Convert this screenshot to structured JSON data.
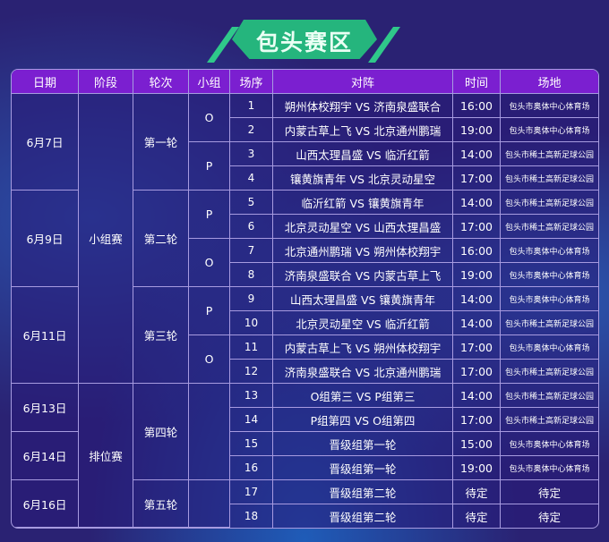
{
  "title": "包头赛区",
  "colors": {
    "header": "#7b1fd0",
    "title_badge": "#25b57d",
    "background": "#2a2273"
  },
  "headers": [
    "日期",
    "阶段",
    "轮次",
    "小组",
    "场序",
    "对阵",
    "时间",
    "场地"
  ],
  "dates": [
    {
      "label": "6月7日",
      "rows": 4
    },
    {
      "label": "6月9日",
      "rows": 4
    },
    {
      "label": "6月11日",
      "rows": 4
    },
    {
      "label": "6月13日",
      "rows": 2
    },
    {
      "label": "6月14日",
      "rows": 2
    },
    {
      "label": "6月16日",
      "rows": 2
    }
  ],
  "stages": [
    {
      "label": "小组赛",
      "rows": 12
    },
    {
      "label": "排位赛",
      "rows": 6
    }
  ],
  "rounds": [
    {
      "label": "第一轮",
      "rows": 4
    },
    {
      "label": "第二轮",
      "rows": 4
    },
    {
      "label": "第三轮",
      "rows": 4
    },
    {
      "label": "第四轮",
      "rows": 4
    },
    {
      "label": "第五轮",
      "rows": 2
    }
  ],
  "groups": [
    {
      "label": "O",
      "rows": 2
    },
    {
      "label": "P",
      "rows": 2
    },
    {
      "label": "P",
      "rows": 2
    },
    {
      "label": "O",
      "rows": 2
    },
    {
      "label": "P",
      "rows": 2
    },
    {
      "label": "O",
      "rows": 2
    },
    {
      "label": "",
      "rows": 4
    },
    {
      "label": "",
      "rows": 2
    }
  ],
  "matches": [
    {
      "no": "1",
      "match": "朔州体校翔宇 VS 济南泉盛联合",
      "time": "16:00",
      "venue": "包头市奥体中心体育场"
    },
    {
      "no": "2",
      "match": "内蒙古草上飞 VS 北京通州鹏瑞",
      "time": "19:00",
      "venue": "包头市奥体中心体育场"
    },
    {
      "no": "3",
      "match": "山西太理昌盛 VS 临沂红箭",
      "time": "14:00",
      "venue": "包头市稀土高新足球公园"
    },
    {
      "no": "4",
      "match": "镶黄旗青年 VS 北京灵动星空",
      "time": "17:00",
      "venue": "包头市稀土高新足球公园"
    },
    {
      "no": "5",
      "match": "临沂红箭 VS 镶黄旗青年",
      "time": "14:00",
      "venue": "包头市稀土高新足球公园"
    },
    {
      "no": "6",
      "match": "北京灵动星空 VS 山西太理昌盛",
      "time": "17:00",
      "venue": "包头市稀土高新足球公园"
    },
    {
      "no": "7",
      "match": "北京通州鹏瑞 VS 朔州体校翔宇",
      "time": "16:00",
      "venue": "包头市奥体中心体育场"
    },
    {
      "no": "8",
      "match": "济南泉盛联合 VS 内蒙古草上飞",
      "time": "19:00",
      "venue": "包头市奥体中心体育场"
    },
    {
      "no": "9",
      "match": "山西太理昌盛 VS 镶黄旗青年",
      "time": "14:00",
      "venue": "包头市奥体中心体育场"
    },
    {
      "no": "10",
      "match": "北京灵动星空 VS 临沂红箭",
      "time": "14:00",
      "venue": "包头市稀土高新足球公园"
    },
    {
      "no": "11",
      "match": "内蒙古草上飞 VS 朔州体校翔宇",
      "time": "17:00",
      "venue": "包头市奥体中心体育场"
    },
    {
      "no": "12",
      "match": "济南泉盛联合 VS 北京通州鹏瑞",
      "time": "17:00",
      "venue": "包头市稀土高新足球公园"
    },
    {
      "no": "13",
      "match": "O组第三 VS P组第三",
      "time": "14:00",
      "venue": "包头市稀土高新足球公园"
    },
    {
      "no": "14",
      "match": "P组第四 VS O组第四",
      "time": "17:00",
      "venue": "包头市稀土高新足球公园"
    },
    {
      "no": "15",
      "match": "晋级组第一轮",
      "time": "15:00",
      "venue": "包头市奥体中心体育场"
    },
    {
      "no": "16",
      "match": "晋级组第一轮",
      "time": "19:00",
      "venue": "包头市奥体中心体育场"
    },
    {
      "no": "17",
      "match": "晋级组第二轮",
      "time": "待定",
      "venue": "待定"
    },
    {
      "no": "18",
      "match": "晋级组第二轮",
      "time": "待定",
      "venue": "待定"
    }
  ]
}
